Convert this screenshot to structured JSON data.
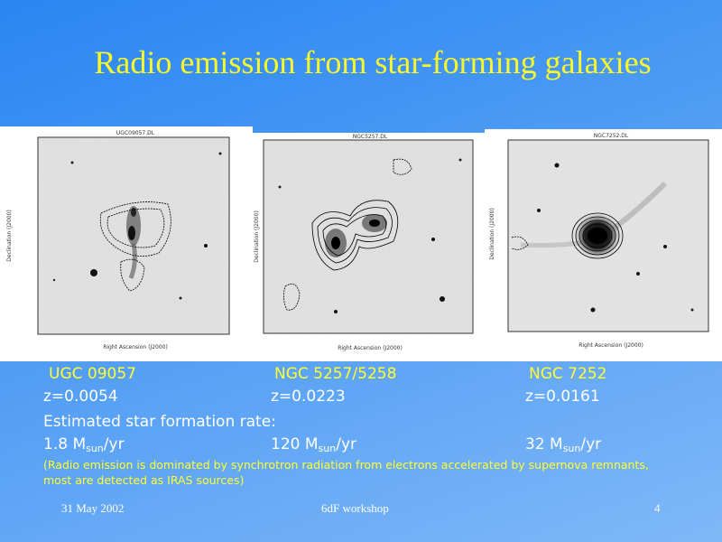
{
  "title": "Radio emission from star-forming galaxies",
  "galaxies": [
    {
      "name": "UGC 09057",
      "redshift": "z=0.0054",
      "rate_value": "1.8 M",
      "rate_sub": "sun",
      "rate_unit": "/yr"
    },
    {
      "name": "NGC 5257/5258",
      "redshift": "z=0.0223",
      "rate_value": "120 M",
      "rate_sub": "sun",
      "rate_unit": "/yr"
    },
    {
      "name": "NGC 7252",
      "redshift": "z=0.0161",
      "rate_value": "32 M",
      "rate_sub": "sun",
      "rate_unit": "/yr"
    }
  ],
  "sfr_label": "Estimated star formation rate:",
  "note_line1": "(Radio emission is dominated by synchrotron radiation from electrons accelerated by supernova remnants,",
  "note_line2": "most are detected as IRAS sources)",
  "footer": {
    "date": "31 May 2002",
    "event": "6dF workshop",
    "page": "4"
  },
  "colors": {
    "title": "#f8f82a",
    "accent_text": "#ffff33",
    "body_text": "#ffffff"
  }
}
